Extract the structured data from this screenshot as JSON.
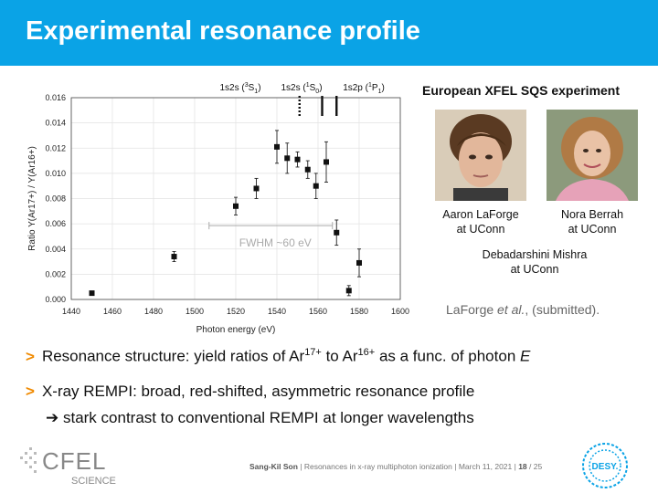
{
  "slide": {
    "title": "Experimental resonance profile",
    "experiment_heading": "European XFEL SQS experiment",
    "citation_author": "LaForge",
    "citation_etal": "et al.",
    "citation_rest": ", (submitted).",
    "bullets": [
      {
        "pre": "Resonance structure: yield ratios of Ar",
        "sup1": "17+",
        "mid": " to Ar",
        "sup2": "16+",
        "post": " as a func. of photon ",
        "italic": "E"
      },
      {
        "text": "X-ray REMPI: broad, red-shifted, asymmetric resonance profile"
      }
    ],
    "sub_bullet": "➔ stark contrast to conventional REMPI at longer wavelengths"
  },
  "people": [
    {
      "name": "Aaron LaForge",
      "affiliation": "at UConn"
    },
    {
      "name": "Nora Berrah",
      "affiliation": "at UConn"
    },
    {
      "name": "Debadarshini Mishra",
      "affiliation": "at UConn"
    }
  ],
  "footer": {
    "author": "Sang-Kil Son",
    "talk": "Resonances in x-ray multiphoton ionization",
    "date": "March 11, 2021",
    "page": "18",
    "total": "/ 25",
    "cfel_logo": "CFEL",
    "cfel_sub": "SCIENCE",
    "desy_logo": "DESY."
  },
  "chart_data": {
    "type": "scatter",
    "xlabel": "Photon energy (eV)",
    "ylabel": "Ratio Y(Ar17+) / Y(Ar16+)",
    "xlim": [
      1440,
      1600
    ],
    "ylim": [
      0.0,
      0.016
    ],
    "xticks": [
      1440,
      1460,
      1480,
      1500,
      1520,
      1540,
      1560,
      1580,
      1600
    ],
    "yticks": [
      "0.000",
      "0.002",
      "0.004",
      "0.006",
      "0.008",
      "0.010",
      "0.012",
      "0.014",
      "0.016"
    ],
    "points": [
      {
        "x": 1450,
        "y": 0.0005,
        "err": 0.0001
      },
      {
        "x": 1490,
        "y": 0.0034,
        "err": 0.0004
      },
      {
        "x": 1520,
        "y": 0.0074,
        "err": 0.0007
      },
      {
        "x": 1530,
        "y": 0.0088,
        "err": 0.0008
      },
      {
        "x": 1540,
        "y": 0.0121,
        "err": 0.0013
      },
      {
        "x": 1545,
        "y": 0.0112,
        "err": 0.0012
      },
      {
        "x": 1550,
        "y": 0.0111,
        "err": 0.0006
      },
      {
        "x": 1555,
        "y": 0.0103,
        "err": 0.0007
      },
      {
        "x": 1559,
        "y": 0.009,
        "err": 0.001
      },
      {
        "x": 1564,
        "y": 0.0109,
        "err": 0.0016
      },
      {
        "x": 1569,
        "y": 0.0053,
        "err": 0.001
      },
      {
        "x": 1575,
        "y": 0.0007,
        "err": 0.0004
      },
      {
        "x": 1580,
        "y": 0.0029,
        "err": 0.0011
      }
    ],
    "fwhm": {
      "label": "FWHM ~60 eV",
      "x_start": 1507,
      "x_end": 1567,
      "y": 0.006
    },
    "transitions": [
      {
        "label_main": "1s2s (",
        "sup": "3",
        "label_end": "S",
        "sub": "1",
        "x": 1551,
        "style": "dotted"
      },
      {
        "label_main": "1s2s (",
        "sup": "1",
        "label_end": "S",
        "sub": "0",
        "x": 1562,
        "style": "solid"
      },
      {
        "label_main": "1s2p (",
        "sup": "1",
        "label_end": "P",
        "sub": "1",
        "x": 1569,
        "style": "solid"
      }
    ],
    "grid": true
  }
}
